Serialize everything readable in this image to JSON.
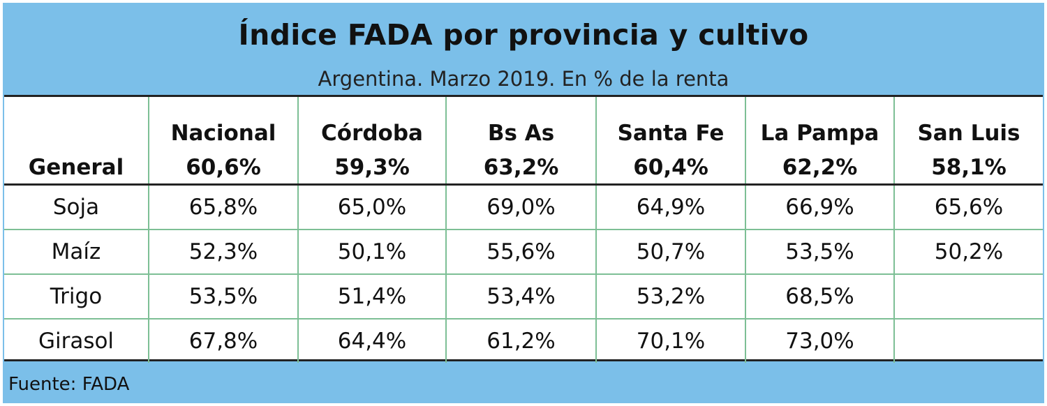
{
  "header": {
    "title": "Índice FADA por provincia y cultivo",
    "subtitle": "Argentina. Marzo 2019. En % de la renta"
  },
  "footer": {
    "source": "Fuente: FADA"
  },
  "colors": {
    "background": "#7bbfe9",
    "grid_lines": "#7dbf95",
    "rule": "#222222"
  },
  "chart_data": {
    "type": "table",
    "title": "Índice FADA por provincia y cultivo",
    "subtitle": "Argentina. Marzo 2019. En % de la renta",
    "columns": [
      "",
      "Nacional",
      "Córdoba",
      "Bs As",
      "Santa Fe",
      "La Pampa",
      "San Luis"
    ],
    "rows": [
      {
        "label": "General",
        "values": [
          "60,6%",
          "59,3%",
          "63,2%",
          "60,4%",
          "62,2%",
          "58,1%"
        ]
      },
      {
        "label": "Soja",
        "values": [
          "65,8%",
          "65,0%",
          "69,0%",
          "64,9%",
          "66,9%",
          "65,6%"
        ]
      },
      {
        "label": "Maíz",
        "values": [
          "52,3%",
          "50,1%",
          "55,6%",
          "50,7%",
          "53,5%",
          "50,2%"
        ]
      },
      {
        "label": "Trigo",
        "values": [
          "53,5%",
          "51,4%",
          "53,4%",
          "53,2%",
          "68,5%",
          ""
        ]
      },
      {
        "label": "Girasol",
        "values": [
          "67,8%",
          "64,4%",
          "61,2%",
          "70,1%",
          "73,0%",
          ""
        ]
      }
    ]
  }
}
